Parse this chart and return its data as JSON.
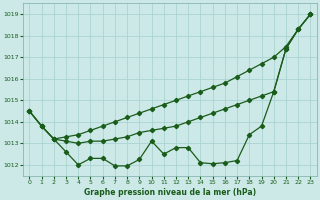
{
  "x": [
    0,
    1,
    2,
    3,
    4,
    5,
    6,
    7,
    8,
    9,
    10,
    11,
    12,
    13,
    14,
    15,
    16,
    17,
    18,
    19,
    20,
    21,
    22,
    23
  ],
  "line1": [
    1014.5,
    1013.8,
    1013.2,
    1013.3,
    1013.4,
    1013.6,
    1013.8,
    1014.0,
    1014.2,
    1014.4,
    1014.6,
    1014.8,
    1015.0,
    1015.2,
    1015.4,
    1015.6,
    1015.8,
    1016.1,
    1016.4,
    1016.7,
    1017.0,
    1017.5,
    1018.3,
    1019.0
  ],
  "line2": [
    1014.5,
    1013.8,
    1013.2,
    1013.1,
    1013.0,
    1013.1,
    1013.1,
    1013.2,
    1013.3,
    1013.5,
    1013.6,
    1013.7,
    1013.8,
    1014.0,
    1014.2,
    1014.4,
    1014.6,
    1014.8,
    1015.0,
    1015.2,
    1015.4,
    1017.4,
    1018.3,
    1019.0
  ],
  "line3": [
    1014.5,
    1013.8,
    1013.2,
    1012.6,
    1012.0,
    1012.3,
    1012.3,
    1011.95,
    1011.95,
    1012.25,
    1013.1,
    1012.5,
    1012.8,
    1012.8,
    1012.1,
    1012.05,
    1012.1,
    1012.2,
    1013.4,
    1013.8,
    1015.4,
    1017.4,
    1018.3,
    1019.0
  ],
  "bg_color": "#cce9e8",
  "grid_color": "#aad4d3",
  "line_color": "#1a5c1a",
  "xlabel": "Graphe pression niveau de la mer (hPa)",
  "ylim": [
    1011.5,
    1019.5
  ],
  "yticks": [
    1012,
    1013,
    1014,
    1015,
    1016,
    1017,
    1018,
    1019
  ],
  "xticks": [
    0,
    1,
    2,
    3,
    4,
    5,
    6,
    7,
    8,
    9,
    10,
    11,
    12,
    13,
    14,
    15,
    16,
    17,
    18,
    19,
    20,
    21,
    22,
    23
  ],
  "figsize": [
    3.2,
    2.0
  ],
  "dpi": 100
}
